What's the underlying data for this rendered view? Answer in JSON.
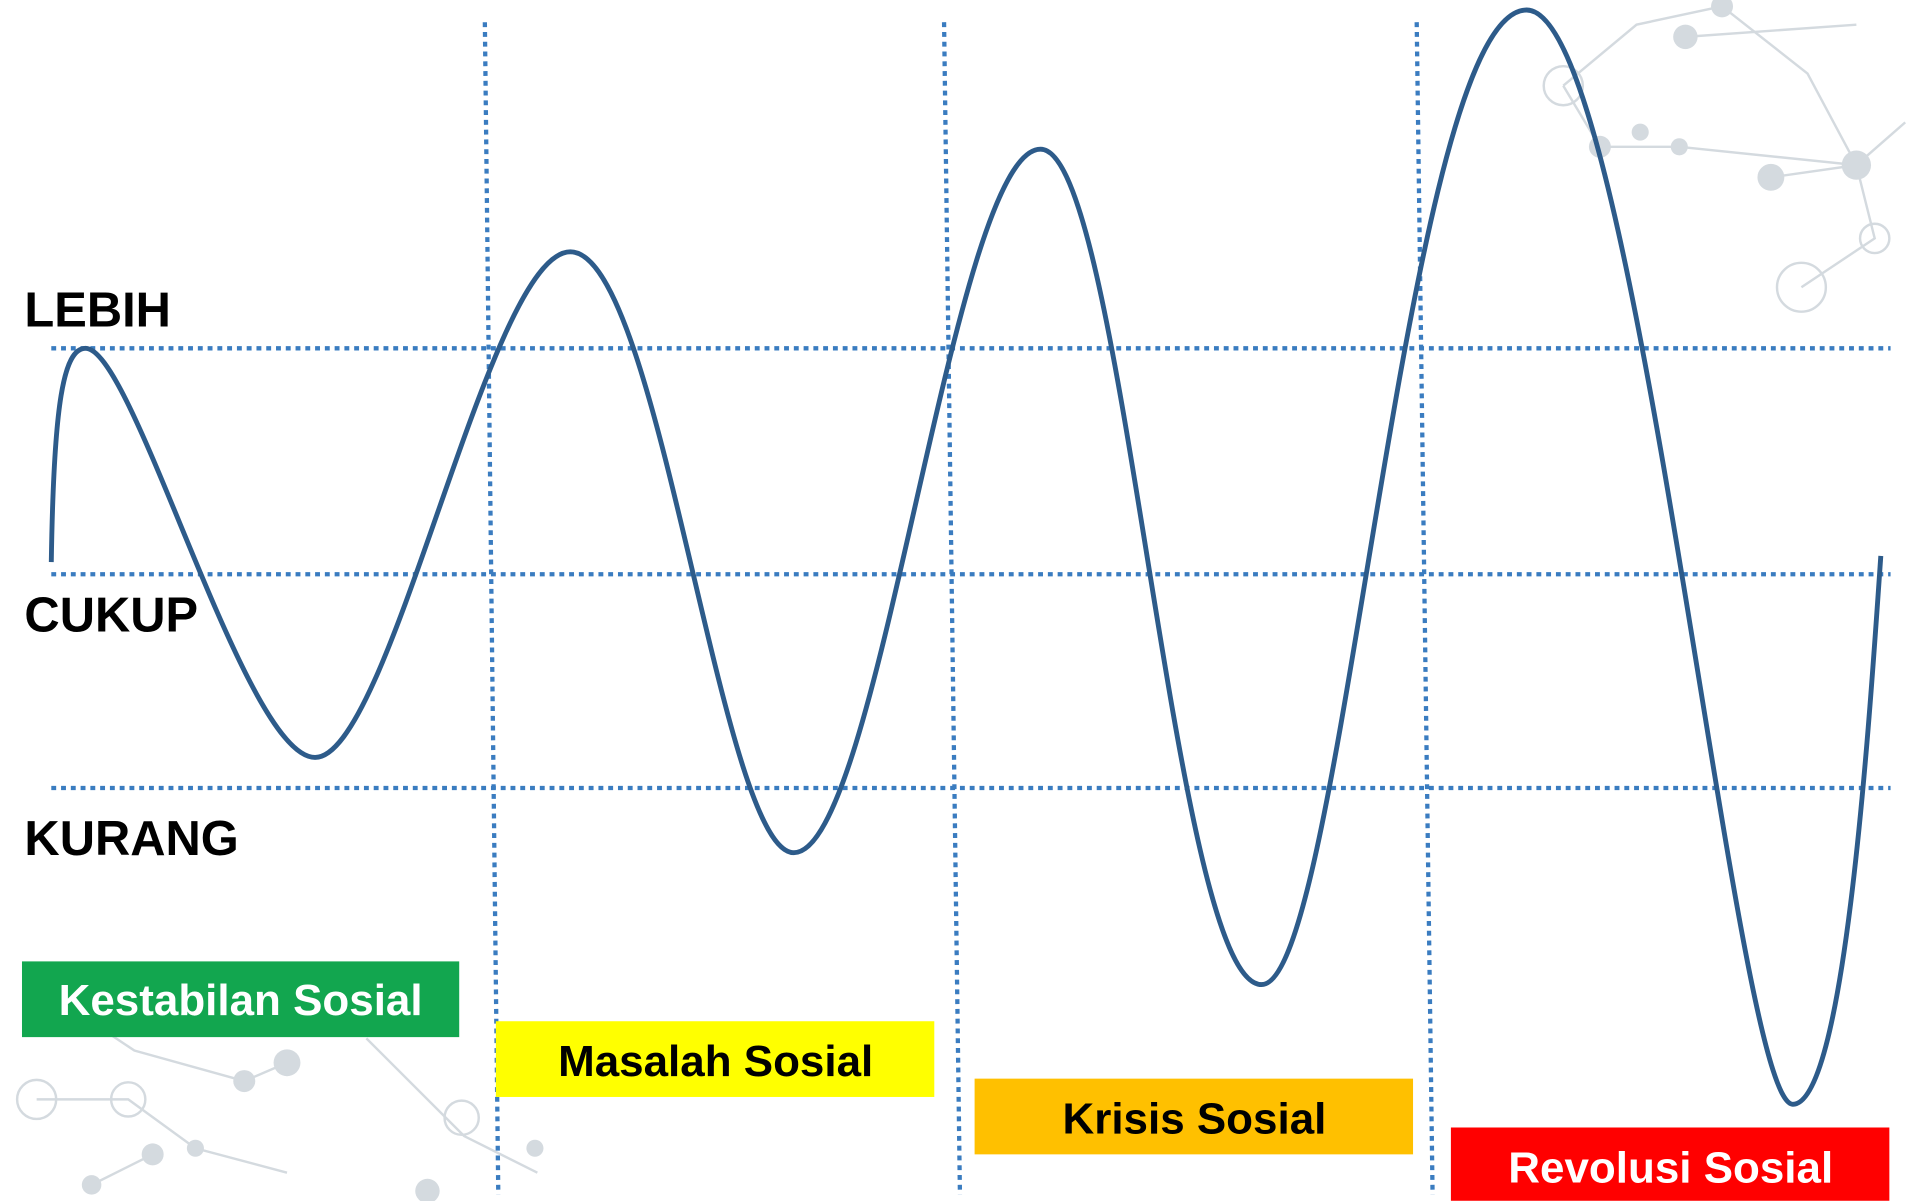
{
  "levels": [
    "LEBIH",
    "CUKUP",
    "KURANG"
  ],
  "phases": [
    "Kestabilan Sosial",
    "Masalah Sosial",
    "Krisis Sosial",
    "Revolusi Sosial"
  ]
}
